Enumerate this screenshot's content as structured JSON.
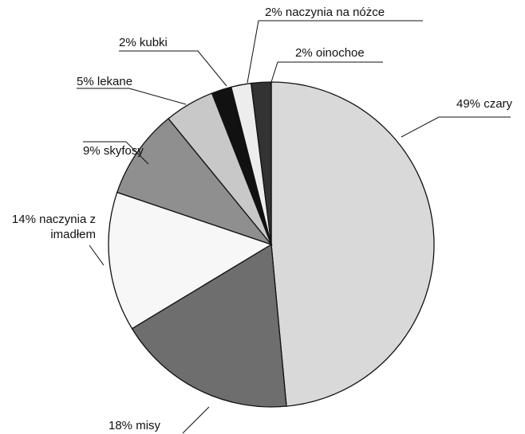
{
  "chart_data": {
    "type": "pie",
    "categories": [
      "czary",
      "misy",
      "naczynia z imadłem",
      "skyfosy",
      "lekane",
      "kubki",
      "naczynia na nóżce",
      "oinochoe"
    ],
    "values": [
      49,
      18,
      14,
      9,
      5,
      2,
      2,
      2
    ],
    "value_labels": [
      "49%",
      "18%",
      "14%",
      "9%",
      "5%",
      "2%",
      "2%",
      "2%"
    ],
    "colors": [
      "#d9d9d9",
      "#6e6e6e",
      "#f7f7f7",
      "#8f8f8f",
      "#c8c8c8",
      "#111111",
      "#ededed",
      "#333333"
    ]
  }
}
